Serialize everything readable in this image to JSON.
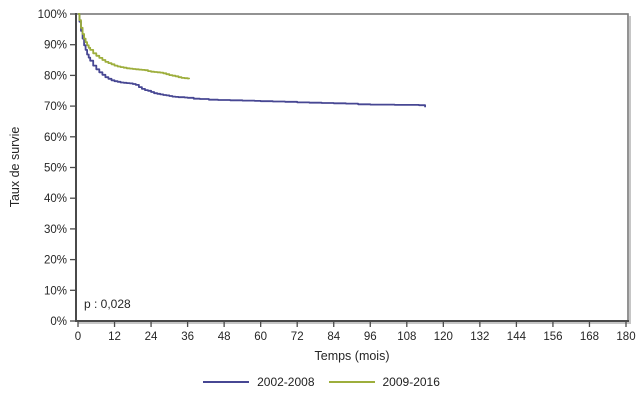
{
  "chart_data": {
    "type": "line",
    "subtype": "kaplan-meier-survival-step",
    "title": "",
    "xlabel": "Temps (mois)",
    "ylabel": "Taux de survie",
    "annotation": "p : 0,028",
    "xlim": [
      0,
      180
    ],
    "ylim": [
      0,
      100
    ],
    "grid": false,
    "legend_position": "bottom-center",
    "x_ticks": [
      0,
      12,
      24,
      36,
      48,
      60,
      72,
      84,
      96,
      108,
      120,
      132,
      144,
      156,
      168,
      180
    ],
    "x_tick_labels": [
      "0",
      "12",
      "24",
      "36",
      "48",
      "60",
      "72",
      "84",
      "96",
      "108",
      "120",
      "132",
      "144",
      "156",
      "168",
      "180"
    ],
    "y_ticks": [
      0,
      10,
      20,
      30,
      40,
      50,
      60,
      70,
      80,
      90,
      100
    ],
    "y_tick_labels": [
      "0%",
      "10%",
      "20%",
      "30%",
      "40%",
      "50%",
      "60%",
      "70%",
      "80%",
      "90%",
      "100%"
    ],
    "series": [
      {
        "name": "2002-2008",
        "color": "#474793",
        "points": [
          [
            0,
            100
          ],
          [
            0.5,
            97.5
          ],
          [
            1,
            94.5
          ],
          [
            1.5,
            92
          ],
          [
            2,
            89.8
          ],
          [
            2.5,
            88.3
          ],
          [
            3,
            86.8
          ],
          [
            3.5,
            85.8
          ],
          [
            4,
            84.8
          ],
          [
            5,
            83.2
          ],
          [
            6,
            82
          ],
          [
            7,
            81
          ],
          [
            8,
            80.2
          ],
          [
            9,
            79.4
          ],
          [
            10,
            78.9
          ],
          [
            11,
            78.4
          ],
          [
            12,
            78.1
          ],
          [
            13,
            77.9
          ],
          [
            14,
            77.7
          ],
          [
            15,
            77.6
          ],
          [
            16,
            77.5
          ],
          [
            17,
            77.4
          ],
          [
            18,
            77.2
          ],
          [
            19,
            76.9
          ],
          [
            20,
            76.2
          ],
          [
            21,
            75.6
          ],
          [
            22,
            75.2
          ],
          [
            23,
            75
          ],
          [
            24,
            74.6
          ],
          [
            25,
            74.2
          ],
          [
            26,
            74
          ],
          [
            27,
            73.8
          ],
          [
            28,
            73.6
          ],
          [
            29,
            73.5
          ],
          [
            30,
            73.3
          ],
          [
            31,
            73.1
          ],
          [
            32,
            73
          ],
          [
            33,
            72.9
          ],
          [
            35,
            72.8
          ],
          [
            36,
            72.7
          ],
          [
            38,
            72.4
          ],
          [
            40,
            72.3
          ],
          [
            43,
            72.1
          ],
          [
            46,
            72
          ],
          [
            50,
            71.9
          ],
          [
            54,
            71.8
          ],
          [
            58,
            71.7
          ],
          [
            60,
            71.6
          ],
          [
            64,
            71.5
          ],
          [
            68,
            71.4
          ],
          [
            72,
            71.2
          ],
          [
            76,
            71.1
          ],
          [
            80,
            71
          ],
          [
            84,
            70.9
          ],
          [
            88,
            70.8
          ],
          [
            92,
            70.6
          ],
          [
            96,
            70.5
          ],
          [
            100,
            70.5
          ],
          [
            104,
            70.4
          ],
          [
            108,
            70.4
          ],
          [
            112,
            70.3
          ],
          [
            113.5,
            70.3
          ],
          [
            114,
            69.6
          ]
        ]
      },
      {
        "name": "2009-2016",
        "color": "#9dae3c",
        "points": [
          [
            0,
            100
          ],
          [
            0.5,
            98
          ],
          [
            1,
            95.5
          ],
          [
            1.5,
            93.5
          ],
          [
            2,
            92
          ],
          [
            2.5,
            90.8
          ],
          [
            3,
            89.8
          ],
          [
            3.5,
            89
          ],
          [
            4,
            88.3
          ],
          [
            5,
            87.2
          ],
          [
            6,
            86.4
          ],
          [
            7,
            85.7
          ],
          [
            8,
            85
          ],
          [
            9,
            84.4
          ],
          [
            10,
            84
          ],
          [
            11,
            83.6
          ],
          [
            12,
            83.2
          ],
          [
            13,
            82.9
          ],
          [
            14,
            82.7
          ],
          [
            15,
            82.5
          ],
          [
            16,
            82.3
          ],
          [
            17,
            82.2
          ],
          [
            18,
            82.1
          ],
          [
            19,
            82
          ],
          [
            20,
            81.9
          ],
          [
            21,
            81.8
          ],
          [
            22,
            81.7
          ],
          [
            23,
            81.4
          ],
          [
            24,
            81.2
          ],
          [
            25,
            81.1
          ],
          [
            26,
            81
          ],
          [
            27,
            80.9
          ],
          [
            28,
            80.7
          ],
          [
            29,
            80.4
          ],
          [
            30,
            80.1
          ],
          [
            31,
            79.9
          ],
          [
            32,
            79.7
          ],
          [
            33,
            79.4
          ],
          [
            34,
            79.2
          ],
          [
            35,
            79.1
          ],
          [
            36,
            79
          ],
          [
            36.5,
            78.8
          ]
        ]
      }
    ],
    "frame": {
      "border_color": "#787878",
      "axis_color": "#4a4a4a",
      "shadow_color": "#c6c6c6",
      "tick_color": "#4a4a4a",
      "text_color": "#262626"
    }
  }
}
